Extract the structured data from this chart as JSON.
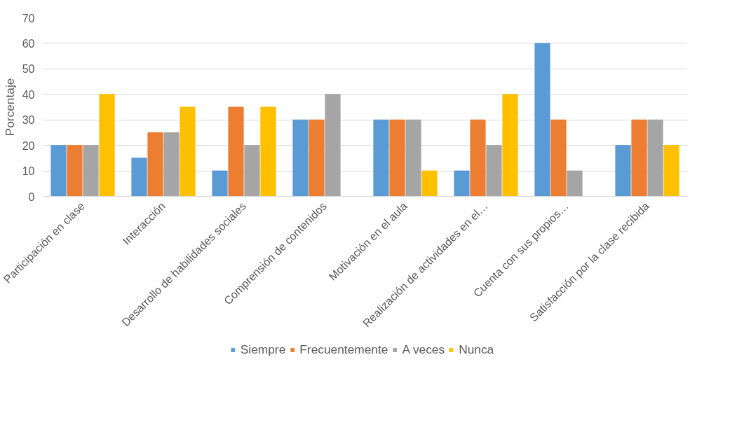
{
  "chart_data": {
    "type": "bar",
    "ylabel": "Porcentaje",
    "categories": [
      "Participación en clase",
      "Interacción",
      "Desarrollo de habilidades sociales",
      "Comprensión de contenidos",
      "Motivación en el aula",
      "Realización de actividades en el…",
      "Cuenta con sus propios…",
      "Satisfacción por la clase recibida"
    ],
    "series": [
      {
        "name": "Siempre",
        "color": "#5b9bd5",
        "values": [
          20,
          15,
          10,
          30,
          30,
          10,
          60,
          20
        ]
      },
      {
        "name": "Frecuentemente",
        "color": "#ed7d31",
        "values": [
          20,
          25,
          35,
          30,
          30,
          30,
          30,
          30
        ]
      },
      {
        "name": "A veces",
        "color": "#a5a5a5",
        "values": [
          20,
          25,
          20,
          40,
          30,
          20,
          10,
          30
        ]
      },
      {
        "name": "Nunca",
        "color": "#ffc000",
        "values": [
          40,
          35,
          35,
          0,
          10,
          40,
          0,
          20
        ]
      }
    ],
    "ylim": [
      0,
      70
    ],
    "yticks": [
      0,
      10,
      20,
      30,
      40,
      50,
      60,
      70
    ],
    "grid": "y",
    "legend": "bottom"
  }
}
